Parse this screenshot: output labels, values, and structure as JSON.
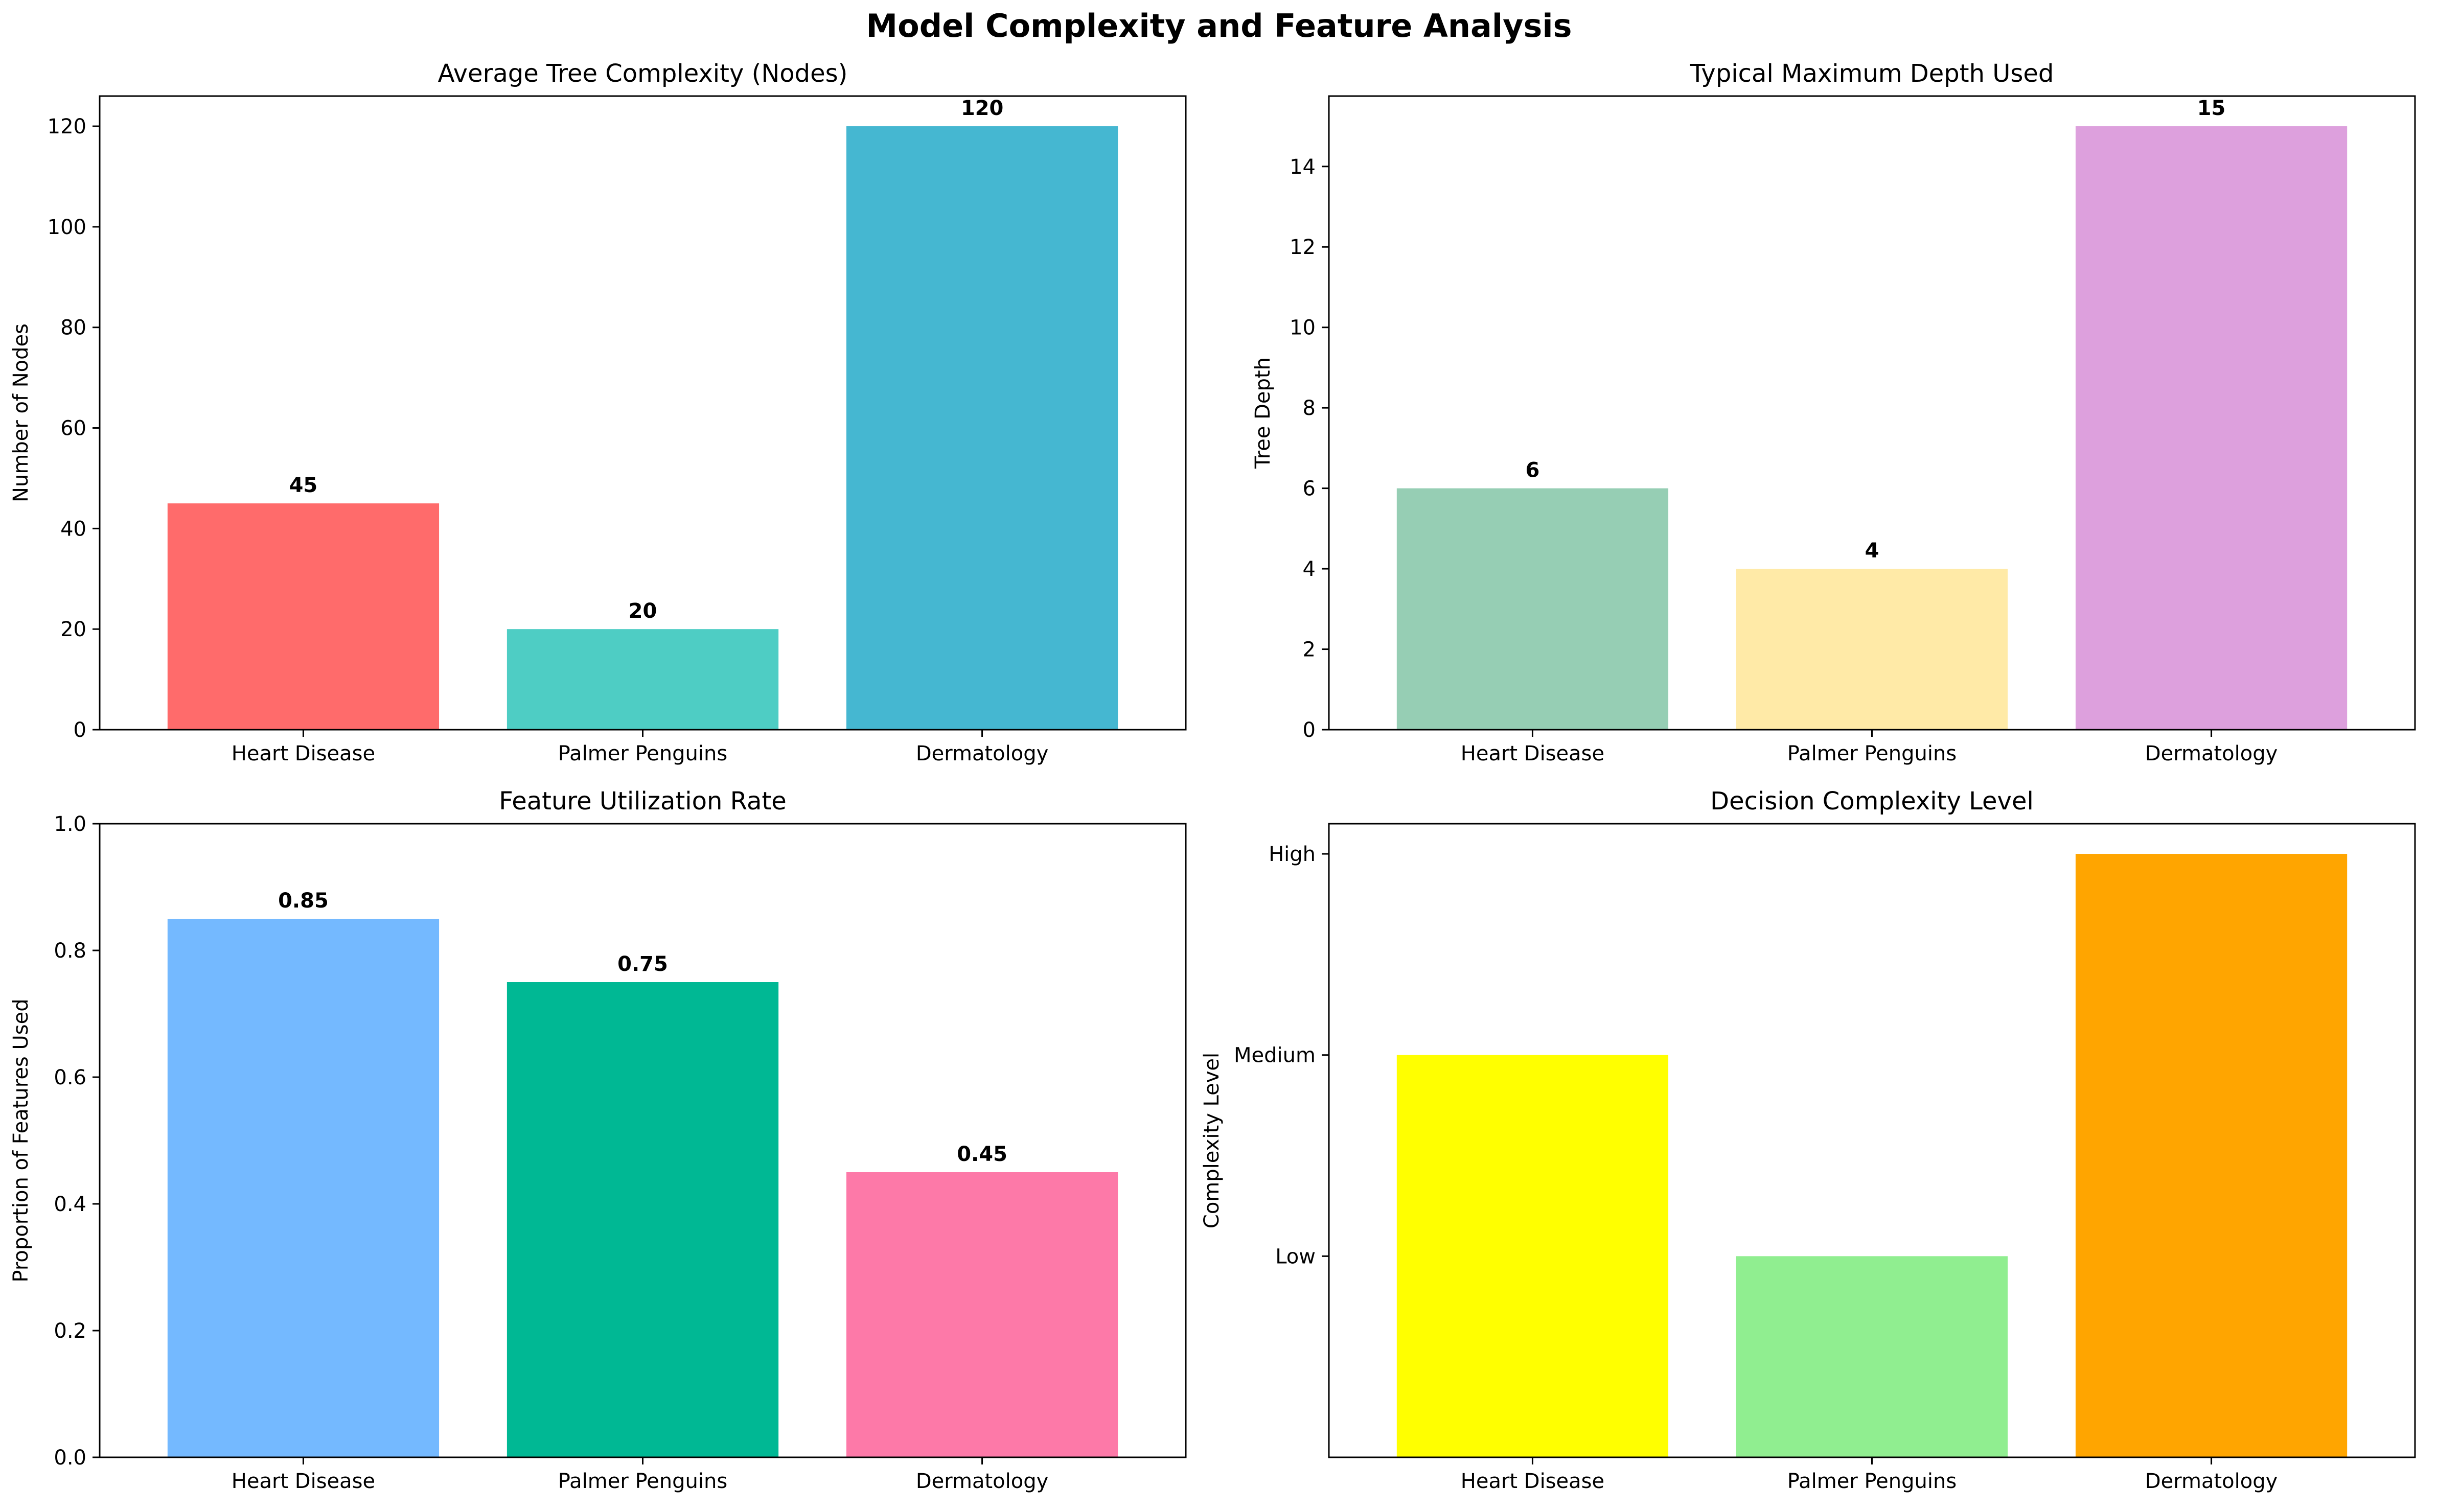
{
  "figure": {
    "title": "Model Complexity and Feature Analysis"
  },
  "chart_data": [
    {
      "type": "bar",
      "title": "Average Tree Complexity (Nodes)",
      "xlabel": "",
      "ylabel": "Number of Nodes",
      "categories": [
        "Heart Disease",
        "Palmer Penguins",
        "Dermatology"
      ],
      "values": [
        45,
        20,
        120
      ],
      "value_labels": [
        "45",
        "20",
        "120"
      ],
      "colors": [
        "#FF6B6B",
        "#4ECDC4",
        "#45B7D1"
      ],
      "ylim": [
        0,
        126
      ],
      "yticks": [
        0,
        20,
        40,
        60,
        80,
        100,
        120
      ],
      "ytick_labels": [
        "0",
        "20",
        "40",
        "60",
        "80",
        "100",
        "120"
      ],
      "grid": false
    },
    {
      "type": "bar",
      "title": "Typical Maximum Depth Used",
      "xlabel": "",
      "ylabel": "Tree Depth",
      "categories": [
        "Heart Disease",
        "Palmer Penguins",
        "Dermatology"
      ],
      "values": [
        6,
        4,
        15
      ],
      "value_labels": [
        "6",
        "4",
        "15"
      ],
      "colors": [
        "#96CEB4",
        "#FFEAA7",
        "#DDA0DD"
      ],
      "ylim": [
        0,
        15.75
      ],
      "yticks": [
        0,
        2,
        4,
        6,
        8,
        10,
        12,
        14
      ],
      "ytick_labels": [
        "0",
        "2",
        "4",
        "6",
        "8",
        "10",
        "12",
        "14"
      ],
      "grid": false
    },
    {
      "type": "bar",
      "title": "Feature Utilization Rate",
      "xlabel": "",
      "ylabel": "Proportion of Features Used",
      "categories": [
        "Heart Disease",
        "Palmer Penguins",
        "Dermatology"
      ],
      "values": [
        0.85,
        0.75,
        0.45
      ],
      "value_labels": [
        "0.85",
        "0.75",
        "0.45"
      ],
      "colors": [
        "#74B9FF",
        "#00B894",
        "#FD79A8"
      ],
      "ylim": [
        0,
        1.0
      ],
      "yticks": [
        0,
        0.2,
        0.4,
        0.6,
        0.8,
        1.0
      ],
      "ytick_labels": [
        "0.0",
        "0.2",
        "0.4",
        "0.6",
        "0.8",
        "1.0"
      ],
      "grid": false
    },
    {
      "type": "bar",
      "title": "Decision Complexity Level",
      "xlabel": "",
      "ylabel": "Complexity Level",
      "categories": [
        "Heart Disease",
        "Palmer Penguins",
        "Dermatology"
      ],
      "values": [
        2,
        1,
        3
      ],
      "value_labels": [],
      "colors": [
        "#FFFF00",
        "#90EE90",
        "#FFA500"
      ],
      "ylim": [
        0,
        3.15
      ],
      "yticks": [
        1,
        2,
        3
      ],
      "ytick_labels": [
        "Low",
        "Medium",
        "High"
      ],
      "grid": false
    }
  ]
}
